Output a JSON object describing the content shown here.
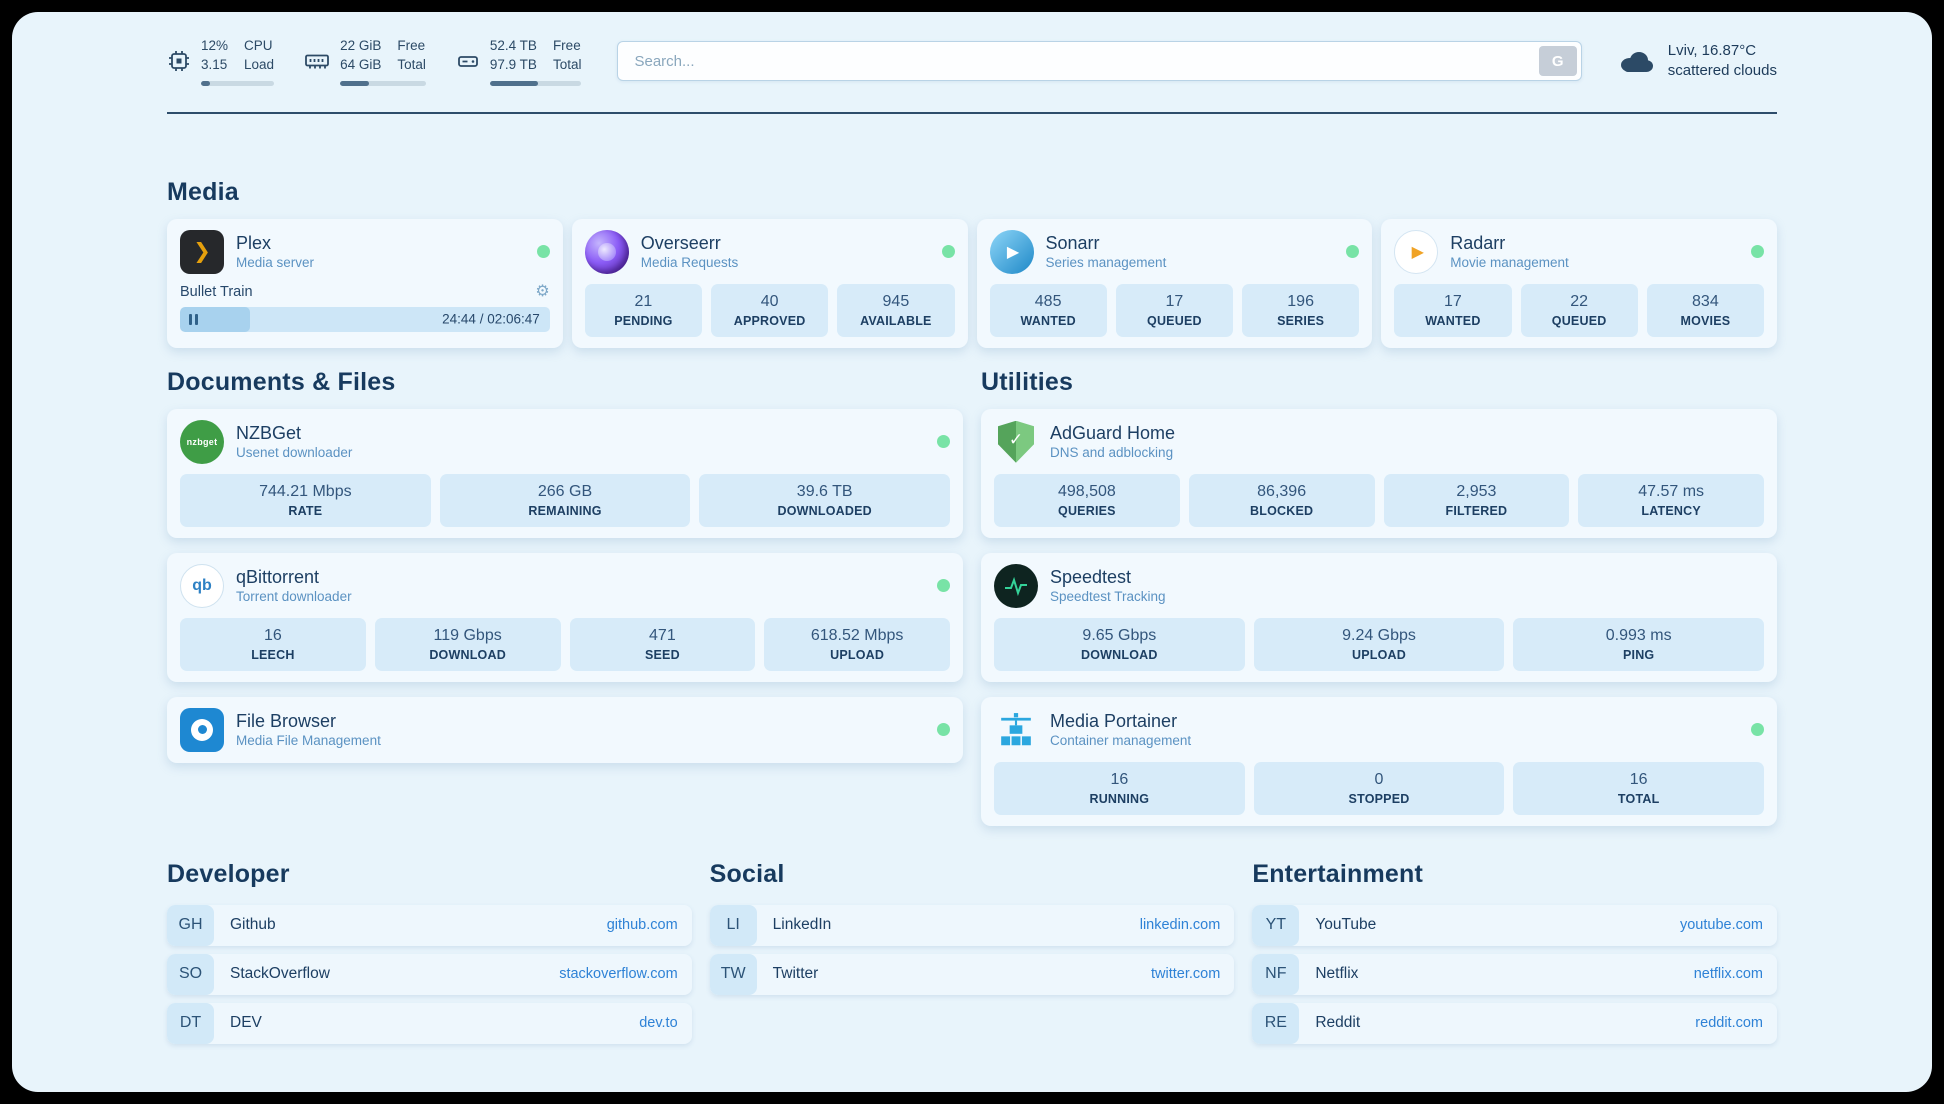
{
  "theme": {
    "background": "#e8f4fb",
    "card_background": "#f2f9fe",
    "stat_background": "#d7ebf9",
    "primary_text": "#1d3f63",
    "secondary_text": "#5b92c2",
    "link_color": "#2e82d6",
    "online_dot_color": "#78e3a6"
  },
  "topbar": {
    "cpu": {
      "icon": "cpu-chip-icon",
      "stat1": "12%",
      "stat2": "3.15",
      "label1": "CPU",
      "label2": "Load",
      "bar_percent": 12
    },
    "ram": {
      "icon": "ram-icon",
      "stat1": "22 GiB",
      "stat2": "64 GiB",
      "label1": "Free",
      "label2": "Total",
      "bar_percent": 34
    },
    "disk": {
      "icon": "hard-drive-icon",
      "stat1": "52.4 TB",
      "stat2": "97.9 TB",
      "label1": "Free",
      "label2": "Total",
      "bar_percent": 53
    },
    "search": {
      "placeholder": "Search...",
      "button_label": "G"
    },
    "weather": {
      "icon": "cloud-icon",
      "location": "Lviv, 16.87°C",
      "condition": "scattered clouds"
    }
  },
  "media": {
    "title": "Media",
    "plex": {
      "icon": "plex-icon",
      "name": "Plex",
      "subtitle": "Media server",
      "status": "online",
      "now_playing": {
        "title": "Bullet Train",
        "time": "24:44 / 02:06:47",
        "progress_percent": 19
      }
    },
    "services": [
      {
        "icon": "overseerr-icon",
        "name": "Overseerr",
        "subtitle": "Media Requests",
        "status": "online",
        "stats": [
          {
            "value": "21",
            "label": "PENDING"
          },
          {
            "value": "40",
            "label": "APPROVED"
          },
          {
            "value": "945",
            "label": "AVAILABLE"
          }
        ]
      },
      {
        "icon": "sonarr-icon",
        "name": "Sonarr",
        "subtitle": "Series management",
        "status": "online",
        "stats": [
          {
            "value": "485",
            "label": "WANTED"
          },
          {
            "value": "17",
            "label": "QUEUED"
          },
          {
            "value": "196",
            "label": "SERIES"
          }
        ]
      },
      {
        "icon": "radarr-icon",
        "name": "Radarr",
        "subtitle": "Movie management",
        "status": "online",
        "stats": [
          {
            "value": "17",
            "label": "WANTED"
          },
          {
            "value": "22",
            "label": "QUEUED"
          },
          {
            "value": "834",
            "label": "MOVIES"
          }
        ]
      }
    ]
  },
  "documents": {
    "title": "Documents & Files",
    "services": [
      {
        "icon": "nzbget-icon",
        "name": "NZBGet",
        "subtitle": "Usenet downloader",
        "status": "online",
        "stats": [
          {
            "value": "744.21 Mbps",
            "label": "RATE"
          },
          {
            "value": "266 GB",
            "label": "REMAINING"
          },
          {
            "value": "39.6 TB",
            "label": "DOWNLOADED"
          }
        ]
      },
      {
        "icon": "qbittorrent-icon",
        "name": "qBittorrent",
        "subtitle": "Torrent downloader",
        "status": "online",
        "stats": [
          {
            "value": "16",
            "label": "LEECH"
          },
          {
            "value": "119 Gbps",
            "label": "DOWNLOAD"
          },
          {
            "value": "471",
            "label": "SEED"
          },
          {
            "value": "618.52 Mbps",
            "label": "UPLOAD"
          }
        ]
      },
      {
        "icon": "filebrowser-icon",
        "name": "File Browser",
        "subtitle": "Media File Management",
        "status": "online",
        "stats": []
      }
    ]
  },
  "utilities": {
    "title": "Utilities",
    "services": [
      {
        "icon": "adguard-icon",
        "name": "AdGuard Home",
        "subtitle": "DNS and adblocking",
        "stats": [
          {
            "value": "498,508",
            "label": "QUERIES"
          },
          {
            "value": "86,396",
            "label": "BLOCKED"
          },
          {
            "value": "2,953",
            "label": "FILTERED"
          },
          {
            "value": "47.57 ms",
            "label": "LATENCY"
          }
        ]
      },
      {
        "icon": "speedtest-icon",
        "name": "Speedtest",
        "subtitle": "Speedtest Tracking",
        "stats": [
          {
            "value": "9.65 Gbps",
            "label": "DOWNLOAD"
          },
          {
            "value": "9.24 Gbps",
            "label": "UPLOAD"
          },
          {
            "value": "0.993 ms",
            "label": "PING"
          }
        ]
      },
      {
        "icon": "portainer-icon",
        "name": "Media Portainer",
        "subtitle": "Container management",
        "status": "online",
        "stats": [
          {
            "value": "16",
            "label": "RUNNING"
          },
          {
            "value": "0",
            "label": "STOPPED"
          },
          {
            "value": "16",
            "label": "TOTAL"
          }
        ]
      }
    ]
  },
  "bookmarks": [
    {
      "title": "Developer",
      "items": [
        {
          "abbr": "GH",
          "name": "Github",
          "url": "github.com"
        },
        {
          "abbr": "SO",
          "name": "StackOverflow",
          "url": "stackoverflow.com"
        },
        {
          "abbr": "DT",
          "name": "DEV",
          "url": "dev.to"
        }
      ]
    },
    {
      "title": "Social",
      "items": [
        {
          "abbr": "LI",
          "name": "LinkedIn",
          "url": "linkedin.com"
        },
        {
          "abbr": "TW",
          "name": "Twitter",
          "url": "twitter.com"
        }
      ]
    },
    {
      "title": "Entertainment",
      "items": [
        {
          "abbr": "YT",
          "name": "YouTube",
          "url": "youtube.com"
        },
        {
          "abbr": "NF",
          "name": "Netflix",
          "url": "netflix.com"
        },
        {
          "abbr": "RE",
          "name": "Reddit",
          "url": "reddit.com"
        }
      ]
    }
  ]
}
